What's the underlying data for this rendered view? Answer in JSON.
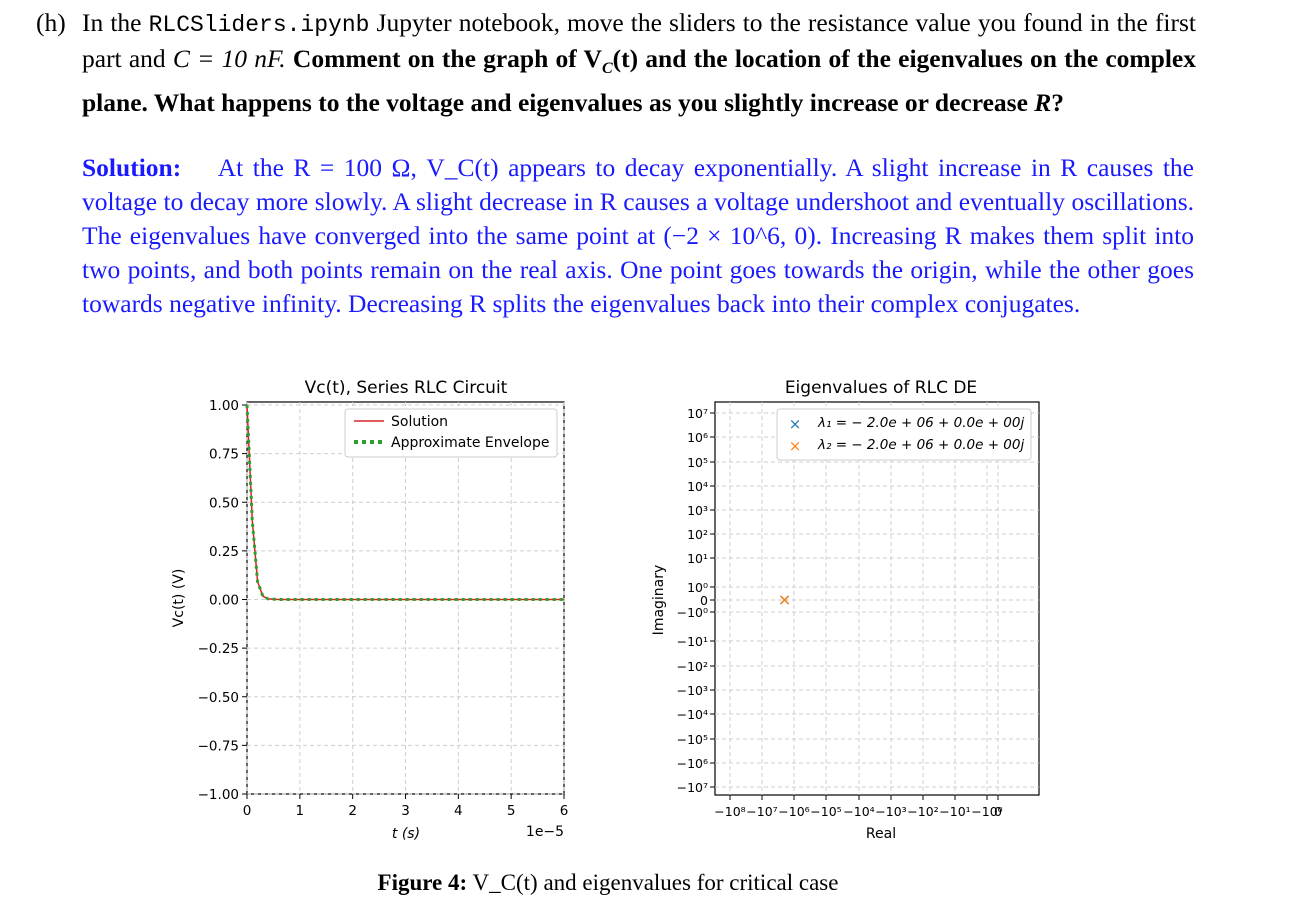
{
  "question": {
    "label": "(h)",
    "text_1": "In the",
    "notebook": "RLCSliders.ipynb",
    "text_2": "Jupyter notebook, move the sliders to the resistance value you found in the first part and",
    "cap_expr": "C = 10 nF.",
    "bold_text": "Comment on the graph of V",
    "bold_text_2": "(t) and the location of the eigenvalues on the complex plane. What happens to the voltage and eigenvalues as you slightly increase or decrease",
    "bold_end": "?"
  },
  "solution": {
    "label": "Solution:",
    "text": "At the R = 100 Ω, V_C(t) appears to decay exponentially. A slight increase in R causes the voltage to decay more slowly. A slight decrease in R causes a voltage undershoot and eventually oscillations. The eigenvalues have converged into the same point at (−2 × 10^6, 0). Increasing R makes them split into two points, and both points remain on the real axis. One point goes towards the origin, while the other goes towards negative infinity. Decreasing R splits the eigenvalues back into their complex conjugates."
  },
  "caption": {
    "label": "Figure 4:",
    "text": "V_C(t) and eigenvalues for critical case"
  },
  "chart_data": [
    {
      "type": "line",
      "title": "Vc(t), Series RLC Circuit",
      "xlabel": "t (s)",
      "ylabel": "Vc(t) (V)",
      "xlim": [
        0,
        6e-05
      ],
      "ylim": [
        -1.0,
        1.0
      ],
      "x_ticks": [
        "0",
        "1",
        "2",
        "3",
        "4",
        "5",
        "6"
      ],
      "x_offset_label": "1e−5",
      "y_ticks": [
        "1.00",
        "0.75",
        "0.50",
        "0.25",
        "0.00",
        "−0.25",
        "−0.50",
        "−0.75",
        "−1.00"
      ],
      "grid": true,
      "legend": "top-right",
      "series": [
        {
          "name": "Solution",
          "color": "#d62728",
          "style": "solid",
          "x": [
            0,
            1e-06,
            2e-06,
            3e-06,
            4e-06,
            6e-06,
            1e-05,
            6e-05
          ],
          "y": [
            1.0,
            0.406,
            0.092,
            0.017,
            0.003,
            0.0,
            0.0,
            0.0
          ]
        },
        {
          "name": "Approximate Envelope",
          "color": "#2ca02c",
          "style": "dotted",
          "x": [
            0,
            1e-06,
            2e-06,
            3e-06,
            4e-06,
            6e-06,
            1e-05,
            6e-05
          ],
          "y": [
            1.0,
            0.406,
            0.092,
            0.017,
            0.003,
            0.0,
            0.0,
            0.0
          ]
        }
      ]
    },
    {
      "type": "scatter",
      "title": "Eigenvalues of RLC DE",
      "xlabel": "Real",
      "ylabel": "Imaginary",
      "x_scale": "symlog",
      "y_scale": "symlog",
      "x_ticks": [
        "−10⁸",
        "−10⁷",
        "−10⁶",
        "−10⁵",
        "−10⁴",
        "−10³",
        "−10²",
        "−10¹",
        "−10⁰",
        "0"
      ],
      "y_ticks": [
        "10⁷",
        "10⁶",
        "10⁵",
        "10⁴",
        "10³",
        "10²",
        "10¹",
        "10⁰",
        "0",
        "−10⁰",
        "−10¹",
        "−10²",
        "−10³",
        "−10⁴",
        "−10⁵",
        "−10⁶",
        "−10⁷"
      ],
      "grid": true,
      "legend": "top-right",
      "series": [
        {
          "name": "λ₁ = − 2.0e + 06 + 0.0e + 00j",
          "color": "#1f77b4",
          "marker": "x",
          "x": [
            -2000000
          ],
          "y": [
            0
          ]
        },
        {
          "name": "λ₂ = − 2.0e + 06 + 0.0e + 00j",
          "color": "#ff7f0e",
          "marker": "x",
          "x": [
            -2000000
          ],
          "y": [
            0
          ]
        }
      ]
    }
  ]
}
